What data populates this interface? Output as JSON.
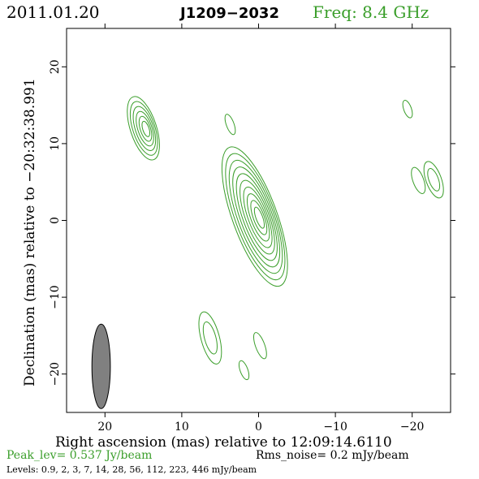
{
  "header": {
    "date": "2011.01.20",
    "source": "J1209−2032",
    "freq": "Freq:  8.4  GHz"
  },
  "footer": {
    "peak": "Peak_lev=  0.537 Jy/beam",
    "rms": "Rms_noise=   0.2  mJy/beam",
    "levels": "Levels: 0.9,    2,    3,    7,   14,   28,   56, 112, 223, 446 mJy/beam"
  },
  "colors": {
    "contour": "#3a9e2a",
    "axis": "#000000",
    "beam_fill": "#808080",
    "freq_text": "#3a9e2a",
    "peak_text": "#3a9e2a"
  },
  "chart_data": {
    "type": "contour",
    "xlabel": "Right ascension (mas) relative to 12:09:14.6110",
    "ylabel": "Declination (mas) relative to −20:32:38.991",
    "xlim": [
      25,
      -25
    ],
    "ylim": [
      -25,
      25
    ],
    "xticks": [
      20,
      10,
      0,
      -10,
      -20
    ],
    "xtick_labels": [
      "20",
      "10",
      "0",
      "−10",
      "−20"
    ],
    "yticks": [
      20,
      10,
      0,
      -10,
      -20
    ],
    "ytick_labels": [
      "20",
      "10",
      "0",
      "−10",
      "−20"
    ],
    "beam": {
      "x": 20.5,
      "y": -19.0,
      "major_mas": 11.0,
      "minor_mas": 2.4,
      "pa_deg": 160
    },
    "components": [
      {
        "name": "core",
        "x": 0.5,
        "y": 0.5,
        "levels": 10,
        "a": 9.6,
        "b": 2.9,
        "pa": 160
      },
      {
        "name": "upper-left",
        "x": 15.0,
        "y": 12.0,
        "levels": 6,
        "a": 4.3,
        "b": 1.7,
        "pa": 162
      },
      {
        "name": "blob-3.8-13",
        "x": 3.7,
        "y": 12.5,
        "levels": 1,
        "a": 1.4,
        "b": 0.5,
        "pa": 160
      },
      {
        "name": "blob-19.5-14",
        "x": -19.4,
        "y": 14.5,
        "levels": 1,
        "a": 1.2,
        "b": 0.5,
        "pa": 160
      },
      {
        "name": "right-pair-a",
        "x": -22.8,
        "y": 5.3,
        "levels": 2,
        "a": 2.5,
        "b": 1.0,
        "pa": 160
      },
      {
        "name": "right-pair-b",
        "x": -20.8,
        "y": 5.2,
        "levels": 1,
        "a": 1.8,
        "b": 0.7,
        "pa": 160
      },
      {
        "name": "lower-left",
        "x": 6.3,
        "y": -15.3,
        "levels": 2,
        "a": 3.5,
        "b": 1.2,
        "pa": 165
      },
      {
        "name": "lower-mid",
        "x": -0.2,
        "y": -16.3,
        "levels": 1,
        "a": 1.8,
        "b": 0.6,
        "pa": 160
      },
      {
        "name": "lower-small",
        "x": 1.9,
        "y": -19.5,
        "levels": 1,
        "a": 1.3,
        "b": 0.5,
        "pa": 160
      }
    ]
  }
}
